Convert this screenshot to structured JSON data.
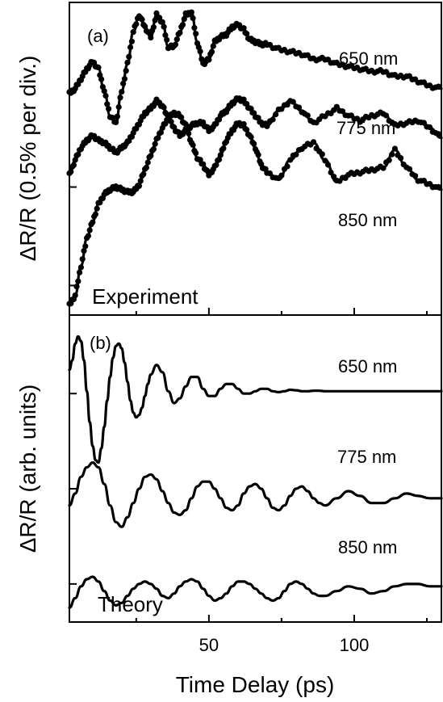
{
  "chart_data": [
    {
      "type": "line",
      "panel_label": "(a)",
      "annotation": "Experiment",
      "ylabel": "ΔR/R (0.5% per div.)",
      "xlim": [
        2,
        130
      ],
      "ylim": [
        -3.6,
        2.75
      ],
      "y_tick_values": [
        -3,
        -1,
        1
      ],
      "series": [
        {
          "name": "650 nm",
          "x": [
            2,
            4,
            6,
            8,
            10,
            12,
            14,
            16,
            18,
            20,
            22,
            24,
            26,
            28,
            30,
            32,
            34,
            36,
            38,
            40,
            42,
            44,
            46,
            48,
            50,
            52,
            54,
            56,
            58,
            60,
            62,
            64,
            66,
            68,
            70,
            74,
            78,
            82,
            86,
            90,
            94,
            98,
            102,
            106,
            110,
            114,
            118,
            122,
            126,
            130
          ],
          "values": [
            0.9,
            1.0,
            1.2,
            1.4,
            1.55,
            1.4,
            0.95,
            0.45,
            0.3,
            0.95,
            1.5,
            2.15,
            2.5,
            2.25,
            2.05,
            2.5,
            2.35,
            1.85,
            1.85,
            2.15,
            2.5,
            2.55,
            1.95,
            1.5,
            1.6,
            1.95,
            2.05,
            2.1,
            2.25,
            2.3,
            2.2,
            2.0,
            1.95,
            1.9,
            1.9,
            1.8,
            1.75,
            1.7,
            1.6,
            1.6,
            1.5,
            1.45,
            1.4,
            1.35,
            1.35,
            1.25,
            1.25,
            1.15,
            1.05,
            1.0
          ]
        },
        {
          "name": "775 nm",
          "x": [
            2,
            4,
            6,
            8,
            10,
            12,
            14,
            16,
            18,
            20,
            22,
            24,
            26,
            28,
            30,
            32,
            34,
            36,
            38,
            40,
            42,
            44,
            46,
            48,
            50,
            52,
            54,
            56,
            58,
            60,
            62,
            64,
            66,
            68,
            70,
            74,
            78,
            82,
            86,
            90,
            94,
            98,
            102,
            106,
            110,
            114,
            118,
            122,
            126,
            130
          ],
          "values": [
            -0.75,
            -0.45,
            -0.2,
            -0.05,
            0.05,
            -0.05,
            -0.1,
            -0.2,
            -0.3,
            -0.2,
            -0.1,
            0.1,
            0.3,
            0.5,
            0.6,
            0.75,
            0.65,
            0.4,
            0.2,
            0.05,
            0.15,
            0.25,
            0.3,
            0.3,
            0.15,
            0.25,
            0.45,
            0.55,
            0.7,
            0.8,
            0.75,
            0.6,
            0.45,
            0.3,
            0.25,
            0.55,
            0.75,
            0.55,
            0.3,
            0.45,
            0.6,
            0.45,
            0.35,
            0.45,
            0.5,
            0.25,
            0.3,
            0.35,
            0.2,
            0.0
          ]
        },
        {
          "name": "850 nm",
          "x": [
            2,
            4,
            6,
            8,
            10,
            12,
            14,
            16,
            18,
            20,
            22,
            24,
            26,
            28,
            30,
            32,
            34,
            36,
            38,
            40,
            42,
            44,
            46,
            48,
            50,
            52,
            54,
            56,
            58,
            60,
            62,
            64,
            66,
            68,
            70,
            74,
            78,
            82,
            86,
            90,
            94,
            98,
            102,
            106,
            110,
            114,
            118,
            122,
            126,
            130
          ],
          "values": [
            -3.4,
            -3.2,
            -2.6,
            -2.05,
            -1.7,
            -1.35,
            -1.15,
            -1.05,
            -1.0,
            -1.05,
            -1.1,
            -1.1,
            -0.95,
            -0.65,
            -0.35,
            -0.05,
            0.2,
            0.4,
            0.5,
            0.45,
            0.25,
            -0.1,
            -0.4,
            -0.55,
            -0.75,
            -0.6,
            -0.35,
            -0.05,
            0.15,
            0.3,
            0.25,
            0.05,
            -0.2,
            -0.55,
            -0.7,
            -0.85,
            -0.45,
            -0.2,
            -0.1,
            -0.45,
            -0.9,
            -0.75,
            -0.7,
            -0.65,
            -0.6,
            -0.25,
            -0.6,
            -0.85,
            -0.95,
            -1.05
          ]
        }
      ]
    },
    {
      "type": "line",
      "panel_label": "(b)",
      "annotation": "Theory",
      "xlabel": "Time Delay (ps)",
      "ylabel": "ΔR/R (arb. units)",
      "xlim": [
        2,
        130
      ],
      "ylim": [
        -3.8,
        2.65
      ],
      "x_ticks": [
        "50",
        "100"
      ],
      "x_tick_values": [
        50,
        100
      ],
      "y_tick_values": [
        -3,
        -1,
        1
      ],
      "series": [
        {
          "name": "650 nm",
          "x": [
            2,
            3,
            4,
            5,
            6,
            7,
            8,
            9,
            10,
            11,
            12,
            13,
            14,
            15,
            16,
            17,
            18,
            19,
            20,
            21,
            22,
            23,
            24,
            25,
            26,
            27,
            28,
            29,
            30,
            32,
            34,
            36,
            38,
            40,
            42,
            44,
            46,
            48,
            50,
            52,
            54,
            56,
            58,
            60,
            62,
            64,
            66,
            68,
            70,
            72,
            74,
            76,
            78,
            80,
            82,
            84,
            86,
            88,
            90,
            94,
            98,
            102,
            106,
            110,
            114,
            118,
            122,
            126,
            130
          ],
          "values": [
            1.5,
            1.7,
            2.05,
            2.2,
            2.1,
            1.7,
            1.05,
            0.4,
            -0.1,
            -0.4,
            -0.45,
            -0.15,
            0.3,
            0.85,
            1.35,
            1.75,
            2.0,
            2.05,
            1.95,
            1.65,
            1.25,
            0.85,
            0.6,
            0.5,
            0.55,
            0.7,
            0.95,
            1.2,
            1.4,
            1.6,
            1.45,
            1.05,
            0.8,
            0.9,
            1.15,
            1.35,
            1.35,
            1.1,
            0.95,
            0.95,
            1.1,
            1.2,
            1.2,
            1.1,
            1.0,
            1.0,
            1.05,
            1.1,
            1.1,
            1.05,
            1.03,
            1.05,
            1.08,
            1.07,
            1.05,
            1.05,
            1.06,
            1.06,
            1.05,
            1.05,
            1.05,
            1.05,
            1.05,
            1.05,
            1.05,
            1.05,
            1.05,
            1.05,
            1.05
          ]
        },
        {
          "name": "775 nm",
          "x": [
            2,
            4,
            6,
            8,
            10,
            12,
            14,
            16,
            18,
            20,
            22,
            24,
            26,
            28,
            30,
            32,
            34,
            36,
            38,
            40,
            42,
            44,
            46,
            48,
            50,
            52,
            54,
            56,
            58,
            60,
            62,
            64,
            66,
            68,
            70,
            72,
            74,
            76,
            78,
            80,
            82,
            84,
            86,
            88,
            90,
            94,
            98,
            102,
            106,
            110,
            114,
            118,
            122,
            126,
            130
          ],
          "values": [
            -1.35,
            -1.1,
            -0.75,
            -0.55,
            -0.45,
            -0.55,
            -0.9,
            -1.35,
            -1.7,
            -1.8,
            -1.6,
            -1.3,
            -1.0,
            -0.75,
            -0.7,
            -0.8,
            -1.05,
            -1.3,
            -1.5,
            -1.55,
            -1.45,
            -1.2,
            -0.95,
            -0.85,
            -0.85,
            -1.0,
            -1.2,
            -1.4,
            -1.45,
            -1.35,
            -1.1,
            -0.95,
            -0.9,
            -1.0,
            -1.2,
            -1.4,
            -1.45,
            -1.35,
            -1.15,
            -1.0,
            -0.95,
            -1.05,
            -1.2,
            -1.3,
            -1.35,
            -1.2,
            -1.05,
            -1.15,
            -1.3,
            -1.3,
            -1.2,
            -1.1,
            -1.15,
            -1.2,
            -1.2
          ]
        },
        {
          "name": "850 nm",
          "x": [
            2,
            4,
            6,
            8,
            10,
            12,
            14,
            16,
            18,
            20,
            22,
            24,
            26,
            28,
            30,
            32,
            34,
            36,
            38,
            40,
            42,
            44,
            46,
            48,
            50,
            52,
            54,
            56,
            58,
            60,
            62,
            64,
            66,
            68,
            70,
            72,
            74,
            76,
            78,
            80,
            82,
            84,
            86,
            88,
            90,
            94,
            98,
            102,
            106,
            110,
            114,
            118,
            122,
            126,
            130
          ],
          "values": [
            -3.5,
            -3.3,
            -3.05,
            -2.9,
            -2.85,
            -2.95,
            -3.15,
            -3.35,
            -3.45,
            -3.4,
            -3.25,
            -3.1,
            -3.0,
            -2.95,
            -3.0,
            -3.1,
            -3.25,
            -3.3,
            -3.2,
            -3.05,
            -2.95,
            -2.9,
            -2.95,
            -3.1,
            -3.25,
            -3.35,
            -3.3,
            -3.2,
            -3.05,
            -2.95,
            -2.95,
            -3.0,
            -3.1,
            -3.2,
            -3.3,
            -3.35,
            -3.3,
            -3.15,
            -3.0,
            -2.95,
            -3.0,
            -3.1,
            -3.2,
            -3.25,
            -3.25,
            -3.15,
            -3.05,
            -3.1,
            -3.2,
            -3.15,
            -3.05,
            -3.0,
            -3.0,
            -3.05,
            -3.05
          ]
        }
      ]
    }
  ]
}
